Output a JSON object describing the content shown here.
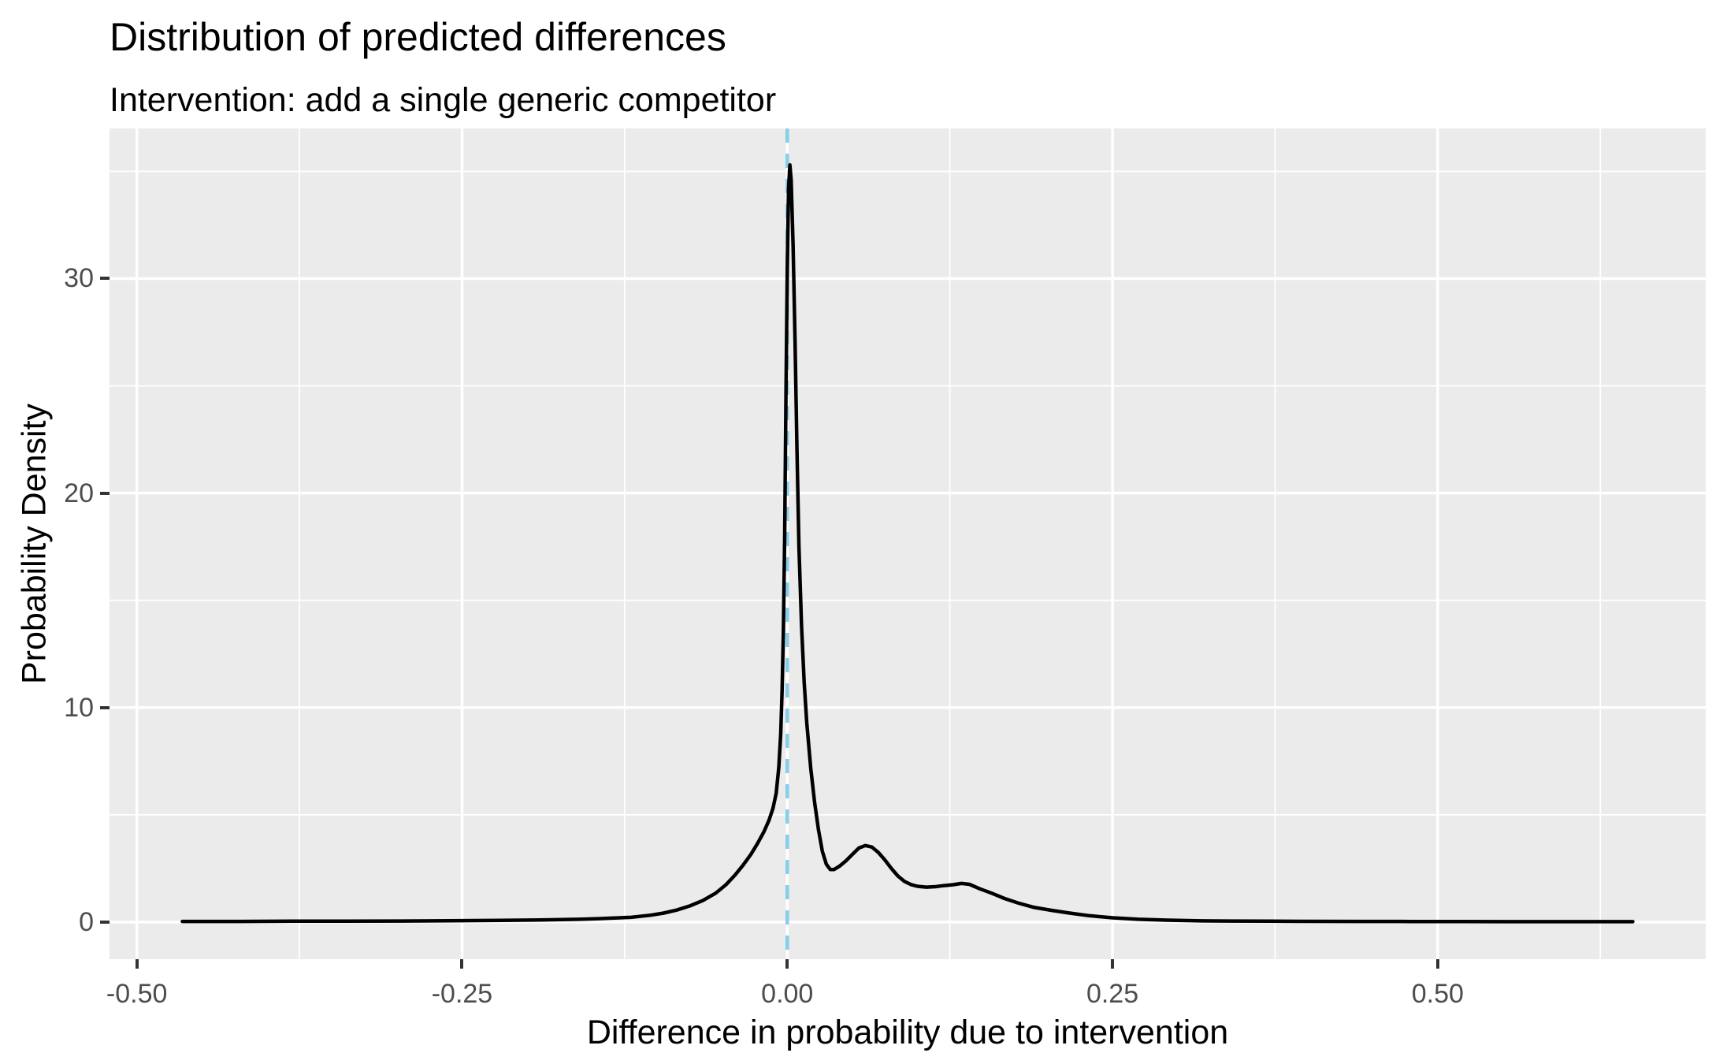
{
  "header": {
    "title": "Distribution of predicted differences",
    "subtitle": "Intervention: add a single generic competitor"
  },
  "chart_data": {
    "type": "line",
    "title": "Distribution of predicted differences",
    "subtitle": "Intervention: add a single generic competitor",
    "xlabel": "Difference in probability due to intervention",
    "ylabel": "Probability Density",
    "xlim": [
      -0.521,
      0.706
    ],
    "ylim": [
      -1.73,
      37.0
    ],
    "grid": true,
    "legend": "none",
    "x_ticks": {
      "values": [
        -0.5,
        -0.25,
        0,
        0.25,
        0.5
      ],
      "labels": [
        "-0.50",
        "-0.25",
        "0.00",
        "0.25",
        "0.50"
      ]
    },
    "y_ticks": {
      "values": [
        0,
        10,
        20,
        30
      ],
      "labels": [
        "0",
        "10",
        "20",
        "30"
      ]
    },
    "x_minor": [
      -0.375,
      -0.125,
      0.125,
      0.375,
      0.625
    ],
    "y_minor": [
      5,
      15,
      25,
      35
    ],
    "reference_line": {
      "orientation": "vertical",
      "x": 0,
      "color": "#87CEEB",
      "linetype": "dashed"
    },
    "series": [
      {
        "name": "predicted-difference-density",
        "color": "#000000",
        "x": [
          -0.465,
          -0.42,
          -0.38,
          -0.34,
          -0.3,
          -0.26,
          -0.22,
          -0.19,
          -0.16,
          -0.14,
          -0.12,
          -0.105,
          -0.095,
          -0.085,
          -0.075,
          -0.065,
          -0.055,
          -0.047,
          -0.04,
          -0.034,
          -0.028,
          -0.023,
          -0.018,
          -0.014,
          -0.011,
          -0.0085,
          -0.0065,
          -0.005,
          -0.004,
          -0.003,
          -0.002,
          -0.001,
          0.0,
          0.001,
          0.002,
          0.003,
          0.0045,
          0.006,
          0.0075,
          0.009,
          0.011,
          0.013,
          0.015,
          0.018,
          0.021,
          0.024,
          0.027,
          0.03,
          0.033,
          0.036,
          0.04,
          0.045,
          0.05,
          0.055,
          0.06,
          0.065,
          0.07,
          0.075,
          0.08,
          0.085,
          0.09,
          0.095,
          0.1,
          0.107,
          0.114,
          0.12,
          0.127,
          0.134,
          0.14,
          0.148,
          0.157,
          0.167,
          0.178,
          0.19,
          0.203,
          0.217,
          0.232,
          0.25,
          0.27,
          0.292,
          0.315,
          0.34,
          0.37,
          0.4,
          0.44,
          0.48,
          0.52,
          0.56,
          0.6,
          0.65
        ],
        "y": [
          0.03,
          0.03,
          0.04,
          0.04,
          0.05,
          0.06,
          0.08,
          0.1,
          0.13,
          0.17,
          0.22,
          0.32,
          0.42,
          0.56,
          0.75,
          1.0,
          1.35,
          1.75,
          2.2,
          2.65,
          3.15,
          3.65,
          4.2,
          4.75,
          5.3,
          6.0,
          7.2,
          8.8,
          10.8,
          13.5,
          18.0,
          24.5,
          30.5,
          34.2,
          35.3,
          34.6,
          31.5,
          27.0,
          22.0,
          17.5,
          13.8,
          11.2,
          9.3,
          7.2,
          5.6,
          4.3,
          3.3,
          2.7,
          2.45,
          2.45,
          2.6,
          2.85,
          3.15,
          3.45,
          3.57,
          3.5,
          3.25,
          2.9,
          2.5,
          2.15,
          1.9,
          1.75,
          1.67,
          1.63,
          1.65,
          1.7,
          1.74,
          1.8,
          1.76,
          1.55,
          1.35,
          1.1,
          0.88,
          0.68,
          0.55,
          0.42,
          0.3,
          0.2,
          0.13,
          0.09,
          0.06,
          0.05,
          0.04,
          0.035,
          0.03,
          0.025,
          0.022,
          0.02,
          0.02,
          0.02
        ]
      }
    ],
    "colors": {
      "panel_background": "#EBEBEB",
      "gridline": "#FFFFFF",
      "axis_text": "#4D4D4D",
      "tick_mark": "#333333",
      "title_text": "#000000",
      "curve": "#000000",
      "reference_line": "#87CEEB"
    }
  }
}
